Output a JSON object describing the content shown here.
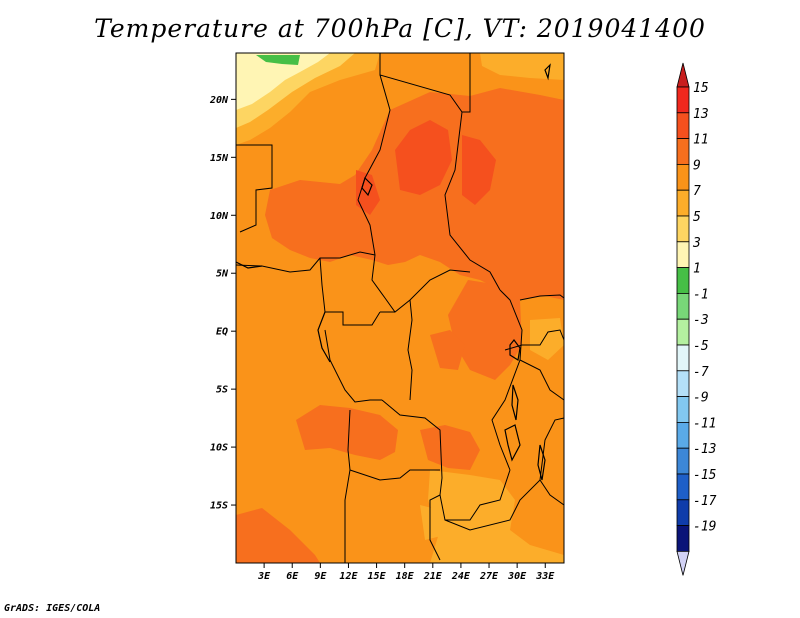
{
  "title": "Temperature at 700hPa [C], VT: 2019041400",
  "credit": "GrADS: IGES/COLA",
  "map": {
    "lon_range": [
      0,
      35
    ],
    "lat_range": [
      -20,
      24
    ],
    "lat_ticks": [
      "20N",
      "15N",
      "10N",
      "5N",
      "EQ",
      "5S",
      "10S",
      "15S"
    ],
    "lat_tick_values": [
      20,
      15,
      10,
      5,
      0,
      -5,
      -10,
      -15
    ],
    "lon_ticks": [
      "3E",
      "6E",
      "9E",
      "12E",
      "15E",
      "18E",
      "21E",
      "24E",
      "27E",
      "30E",
      "33E"
    ],
    "lon_tick_values": [
      3,
      6,
      9,
      12,
      15,
      18,
      21,
      24,
      27,
      30,
      33
    ]
  },
  "colorbar": {
    "labels": [
      "15",
      "13",
      "11",
      "9",
      "7",
      "5",
      "3",
      "1",
      "-1",
      "-3",
      "-5",
      "-7",
      "-9",
      "-11",
      "-13",
      "-15",
      "-17",
      "-19"
    ],
    "colors": [
      "#f0281e",
      "#f5501e",
      "#f76f1e",
      "#fa9319",
      "#fcad2a",
      "#fdd562",
      "#fff5b4",
      "#46bf46",
      "#78d778",
      "#b4f0a0",
      "#e2f6f9",
      "#b4e0f8",
      "#82c8f0",
      "#5aaae8",
      "#3c87d7",
      "#1e5fc8",
      "#0f3caa",
      "#0a1478"
    ],
    "top_arrow_color": "#c81e1e",
    "bottom_arrow_color": "#d2d2f5"
  }
}
